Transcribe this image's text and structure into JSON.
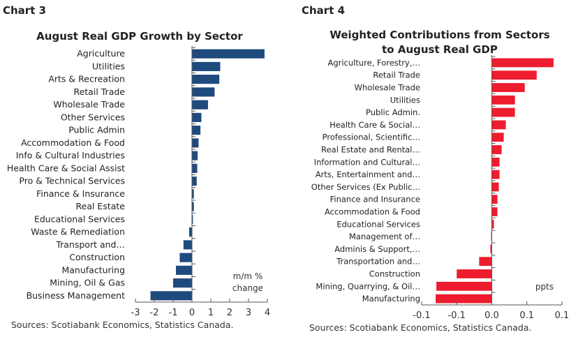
{
  "chart_data": [
    {
      "type": "bar",
      "orientation": "horizontal",
      "label": "Chart 3",
      "title": "August Real GDP Growth by Sector",
      "unit": "m/m % change",
      "source": "Sources: Scotiabank Economics, Statistics Canada.",
      "color": "#1f4a7e",
      "xlim": [
        -3,
        4
      ],
      "xticks": [
        "-3",
        "-2",
        "-1",
        "0",
        "1",
        "2",
        "3",
        "4"
      ],
      "categories": [
        "Agriculture",
        "Utilities",
        "Arts & Recreation",
        "Retail Trade",
        "Wholesale Trade",
        "Other Services",
        "Public Admin",
        "Accommodation & Food",
        "Info & Cultural Industries",
        "Health Care & Social Assist",
        "Pro & Technical Services",
        "Finance & Insurance",
        "Real Estate",
        "Educational Services",
        "Waste & Remediation",
        "Transport and…",
        "Construction",
        "Manufacturing",
        "Mining, Oil & Gas",
        "Business Management"
      ],
      "values": [
        3.85,
        1.5,
        1.45,
        1.2,
        0.85,
        0.5,
        0.45,
        0.35,
        0.3,
        0.28,
        0.25,
        0.1,
        0.1,
        0.05,
        -0.15,
        -0.45,
        -0.65,
        -0.85,
        -1.0,
        -2.2
      ]
    },
    {
      "type": "bar",
      "orientation": "horizontal",
      "label": "Chart 4",
      "title": "Weighted Contributions from Sectors to August Real GDP",
      "unit": "ppts",
      "source": "Sources: Scotiabank Economics, Statistics Canada.",
      "color": "#ed1c2e",
      "xlim": [
        -0.1,
        0.1
      ],
      "xticks": [
        "-0.1",
        "-0.1",
        "0.0",
        "0.1",
        "0.1"
      ],
      "categories": [
        "Agriculture, Forestry,…",
        "Retail Trade",
        "Wholesale Trade",
        "Utilities",
        "Public Admin.",
        "Health Care & Social…",
        "Professional, Scientific…",
        "Real Estate and Rental…",
        "Information and Cultural…",
        "Arts, Entertainment and…",
        "Other Services (Ex Public…",
        "Finance and Insurance",
        "Accommodation & Food",
        "Educational Services",
        "Management of…",
        "Adminis & Support,…",
        "Transportation and…",
        "Construction",
        "Mining, Quarrying, & Oil…",
        "Manufacturing"
      ],
      "values": [
        0.088,
        0.064,
        0.047,
        0.033,
        0.033,
        0.02,
        0.017,
        0.014,
        0.011,
        0.011,
        0.01,
        0.008,
        0.008,
        0.003,
        -0.001,
        -0.002,
        -0.018,
        -0.05,
        -0.079,
        -0.08
      ]
    }
  ]
}
